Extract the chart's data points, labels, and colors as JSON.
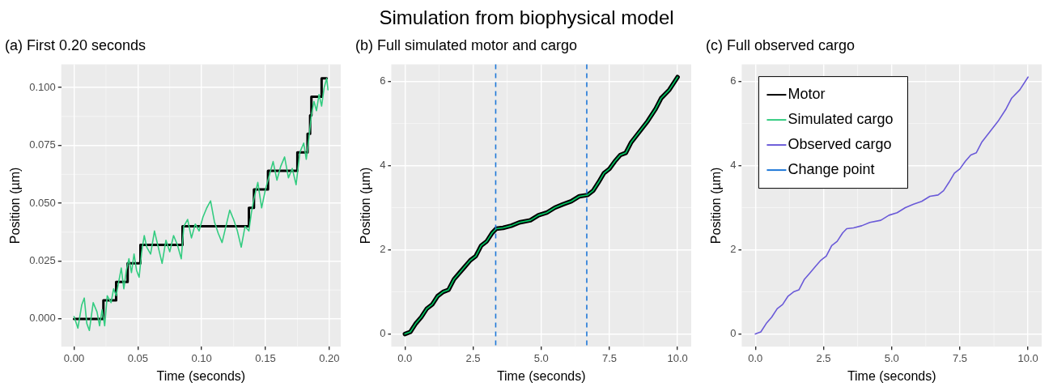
{
  "chart_data": [
    {
      "type": "line",
      "title": "(a) First 0.20 seconds",
      "xlabel": "Time (seconds)",
      "ylabel": "Position (µm)",
      "annotations": [
        "Simulation from biophysical model"
      ],
      "xlim": [
        -0.01,
        0.209
      ],
      "xticks": [
        {
          "value": 0,
          "label": "0.00"
        },
        {
          "value": 0.05,
          "label": "0.05"
        },
        {
          "value": 0.1,
          "label": "0.10"
        },
        {
          "value": 0.15,
          "label": "0.15"
        },
        {
          "value": 0.2,
          "label": "0.20"
        }
      ],
      "ylim": [
        -0.012,
        0.11
      ],
      "yticks": [
        {
          "value": 0,
          "label": "0.000"
        },
        {
          "value": 0.025,
          "label": "0.025"
        },
        {
          "value": 0.05,
          "label": "0.050"
        },
        {
          "value": 0.075,
          "label": "0.075"
        },
        {
          "value": 0.1,
          "label": "0.100"
        }
      ],
      "grid": true,
      "legend": false,
      "marker": "none",
      "series": [
        {
          "name": "Motor",
          "type": "step",
          "color": "#000000",
          "x": [
            0,
            0.023,
            0.033,
            0.042,
            0.052,
            0.085,
            0.137,
            0.141,
            0.152,
            0.175,
            0.183,
            0.185,
            0.186,
            0.194,
            0.198
          ],
          "values": [
            0,
            0.008,
            0.016,
            0.024,
            0.032,
            0.04,
            0.048,
            0.056,
            0.064,
            0.072,
            0.08,
            0.088,
            0.096,
            0.104,
            0.104
          ]
        },
        {
          "name": "Simulated cargo",
          "type": "line",
          "color": "#33cc80",
          "x": [
            0,
            0.003,
            0.006,
            0.008,
            0.01,
            0.012,
            0.015,
            0.018,
            0.02,
            0.022,
            0.024,
            0.026,
            0.029,
            0.031,
            0.033,
            0.035,
            0.037,
            0.039,
            0.041,
            0.043,
            0.045,
            0.047,
            0.049,
            0.051,
            0.053,
            0.055,
            0.057,
            0.06,
            0.063,
            0.066,
            0.069,
            0.072,
            0.075,
            0.078,
            0.081,
            0.084,
            0.086,
            0.089,
            0.092,
            0.095,
            0.098,
            0.101,
            0.104,
            0.107,
            0.11,
            0.113,
            0.116,
            0.119,
            0.122,
            0.125,
            0.128,
            0.131,
            0.134,
            0.137,
            0.139,
            0.141,
            0.144,
            0.147,
            0.15,
            0.153,
            0.156,
            0.159,
            0.162,
            0.165,
            0.168,
            0.171,
            0.174,
            0.177,
            0.18,
            0.182,
            0.184,
            0.186,
            0.188,
            0.19,
            0.192,
            0.194,
            0.196,
            0.198,
            0.199
          ],
          "values": [
            0.001,
            -0.004,
            0.006,
            0.009,
            -0.002,
            -0.005,
            0.007,
            0.003,
            -0.003,
            0.004,
            -0.003,
            0.01,
            0.007,
            0.013,
            0.01,
            0.016,
            0.022,
            0.013,
            0.021,
            0.026,
            0.02,
            0.028,
            0.021,
            0.018,
            0.029,
            0.036,
            0.031,
            0.028,
            0.038,
            0.031,
            0.024,
            0.034,
            0.029,
            0.036,
            0.032,
            0.026,
            0.04,
            0.043,
            0.035,
            0.041,
            0.038,
            0.044,
            0.048,
            0.051,
            0.042,
            0.037,
            0.033,
            0.04,
            0.047,
            0.043,
            0.038,
            0.031,
            0.04,
            0.038,
            0.046,
            0.052,
            0.059,
            0.048,
            0.056,
            0.062,
            0.068,
            0.06,
            0.066,
            0.07,
            0.061,
            0.065,
            0.058,
            0.072,
            0.076,
            0.069,
            0.078,
            0.088,
            0.094,
            0.09,
            0.097,
            0.092,
            0.1,
            0.104,
            0.099
          ]
        }
      ]
    },
    {
      "type": "line",
      "title": "(b) Full simulated motor and cargo",
      "xlabel": "Time (seconds)",
      "ylabel": "Position (µm)",
      "xlim": [
        -0.5,
        10.5
      ],
      "xticks": [
        {
          "value": 0,
          "label": "0.0"
        },
        {
          "value": 2.5,
          "label": "2.5"
        },
        {
          "value": 5,
          "label": "5.0"
        },
        {
          "value": 7.5,
          "label": "7.5"
        },
        {
          "value": 10,
          "label": "10.0"
        }
      ],
      "ylim": [
        -0.3,
        6.4
      ],
      "yticks": [
        0,
        2,
        4,
        6
      ],
      "grid": true,
      "legend": false,
      "marker": "none",
      "ref_lines": [
        {
          "axis": "x",
          "value": 3.33,
          "label": "Change point",
          "color": "#1f78d8",
          "line_style": "dashed"
        },
        {
          "axis": "x",
          "value": 6.67,
          "color": "#1f78d8",
          "line_style": "dashed"
        }
      ],
      "series": [
        {
          "type": "line",
          "color": "#000000",
          "x": [
            0,
            0.2,
            0.4,
            0.6,
            0.8,
            1.0,
            1.2,
            1.4,
            1.6,
            1.8,
            2.0,
            2.2,
            2.4,
            2.6,
            2.8,
            3.0,
            3.2,
            3.35,
            3.6,
            3.9,
            4.2,
            4.6,
            4.9,
            5.2,
            5.5,
            5.8,
            6.1,
            6.4,
            6.7,
            6.9,
            7.1,
            7.3,
            7.5,
            7.7,
            7.9,
            8.1,
            8.3,
            8.6,
            8.9,
            9.2,
            9.4,
            9.7,
            10.0
          ],
          "values": [
            0,
            0.05,
            0.25,
            0.4,
            0.6,
            0.7,
            0.9,
            1.0,
            1.05,
            1.3,
            1.45,
            1.6,
            1.75,
            1.85,
            2.1,
            2.2,
            2.4,
            2.5,
            2.52,
            2.57,
            2.65,
            2.7,
            2.82,
            2.88,
            3.0,
            3.08,
            3.15,
            3.27,
            3.3,
            3.4,
            3.6,
            3.82,
            3.92,
            4.1,
            4.25,
            4.3,
            4.55,
            4.8,
            5.05,
            5.35,
            5.6,
            5.8,
            6.1
          ]
        },
        {
          "type": "line",
          "color": "#00cc66",
          "x": [
            0,
            0.2,
            0.4,
            0.6,
            0.8,
            1.0,
            1.2,
            1.4,
            1.6,
            1.8,
            2.0,
            2.2,
            2.4,
            2.6,
            2.8,
            3.0,
            3.2,
            3.35,
            3.6,
            3.9,
            4.2,
            4.6,
            4.9,
            5.2,
            5.5,
            5.8,
            6.1,
            6.4,
            6.7,
            6.9,
            7.1,
            7.3,
            7.5,
            7.7,
            7.9,
            8.1,
            8.3,
            8.6,
            8.9,
            9.2,
            9.4,
            9.7,
            10.0
          ],
          "values": [
            0,
            0.05,
            0.25,
            0.4,
            0.6,
            0.7,
            0.9,
            1.0,
            1.05,
            1.3,
            1.45,
            1.6,
            1.75,
            1.85,
            2.1,
            2.2,
            2.4,
            2.5,
            2.52,
            2.57,
            2.65,
            2.7,
            2.82,
            2.88,
            3.0,
            3.08,
            3.15,
            3.27,
            3.3,
            3.4,
            3.6,
            3.82,
            3.92,
            4.1,
            4.25,
            4.3,
            4.55,
            4.8,
            5.05,
            5.35,
            5.6,
            5.8,
            6.1
          ]
        }
      ]
    },
    {
      "type": "line",
      "title": "(c) Full observed cargo",
      "xlabel": "Time (seconds)",
      "ylabel": "Position (µm)",
      "xlim": [
        -0.5,
        10.5
      ],
      "xticks": [
        {
          "value": 0,
          "label": "0.0"
        },
        {
          "value": 2.5,
          "label": "2.5"
        },
        {
          "value": 5,
          "label": "5.0"
        },
        {
          "value": 7.5,
          "label": "7.5"
        },
        {
          "value": 10,
          "label": "10.0"
        }
      ],
      "ylim": [
        -0.3,
        6.4
      ],
      "yticks": [
        0,
        2,
        4,
        6
      ],
      "grid": true,
      "legend": "top left",
      "marker": "none",
      "series": [
        {
          "name": "Observed cargo",
          "type": "line",
          "color": "#6a5ad8",
          "x": [
            0,
            0.2,
            0.4,
            0.6,
            0.8,
            1.0,
            1.2,
            1.4,
            1.6,
            1.8,
            2.0,
            2.2,
            2.4,
            2.6,
            2.8,
            3.0,
            3.2,
            3.35,
            3.6,
            3.9,
            4.2,
            4.6,
            4.9,
            5.2,
            5.5,
            5.8,
            6.1,
            6.4,
            6.7,
            6.9,
            7.1,
            7.3,
            7.5,
            7.7,
            7.9,
            8.1,
            8.3,
            8.6,
            8.9,
            9.2,
            9.4,
            9.7,
            10.0
          ],
          "values": [
            0,
            0.05,
            0.25,
            0.4,
            0.6,
            0.7,
            0.9,
            1.0,
            1.05,
            1.3,
            1.45,
            1.6,
            1.75,
            1.85,
            2.1,
            2.2,
            2.4,
            2.5,
            2.52,
            2.57,
            2.65,
            2.7,
            2.82,
            2.88,
            3.0,
            3.08,
            3.15,
            3.27,
            3.3,
            3.4,
            3.6,
            3.82,
            3.92,
            4.1,
            4.25,
            4.3,
            4.55,
            4.8,
            5.05,
            5.35,
            5.6,
            5.8,
            6.1
          ]
        }
      ]
    }
  ]
}
